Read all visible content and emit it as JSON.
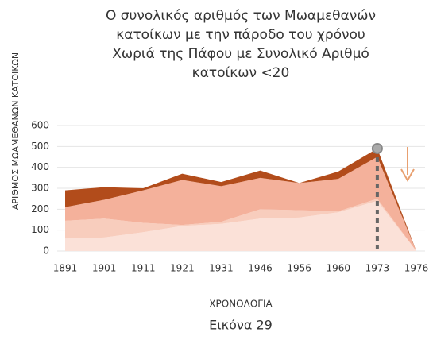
{
  "chart_data": {
    "type": "stacked_area",
    "title": [
      "Ο συνολικός αριθμός των Μωαμεθανών",
      "κατοίκων με την πάροδο του χρόνου",
      "Χωριά της Πάφου με Συνολικό Αριθμό",
      "κατοίκων <20"
    ],
    "y_label": "ΑΡΙΘΜΟΣ ΜΩΑΜΕΘΑΝΩΝ ΚΑΤΟΙΚΩΝ",
    "x_label": "ΧΡΟΝΟΛΟΓΙΑ",
    "caption": "Εικόνα 29",
    "categories": [
      "1891",
      "1901",
      "1911",
      "1921",
      "1931",
      "1946",
      "1956",
      "1960",
      "1973",
      "1976"
    ],
    "series": [
      {
        "color": "#fbe1d8",
        "values": [
          60,
          65,
          90,
          120,
          130,
          155,
          160,
          185,
          240,
          0
        ]
      },
      {
        "color": "#f8cdbd",
        "values": [
          85,
          90,
          45,
          5,
          10,
          45,
          35,
          5,
          10,
          0
        ]
      },
      {
        "color": "#f4b19b",
        "values": [
          65,
          90,
          155,
          215,
          170,
          150,
          130,
          155,
          200,
          0
        ]
      },
      {
        "color": "#b24c1b",
        "values": [
          80,
          60,
          10,
          30,
          20,
          35,
          0,
          35,
          40,
          0
        ]
      }
    ],
    "ylim": [
      0,
      600
    ],
    "yticks": [
      0,
      100,
      200,
      300,
      400,
      500,
      600
    ],
    "grid": true
  }
}
